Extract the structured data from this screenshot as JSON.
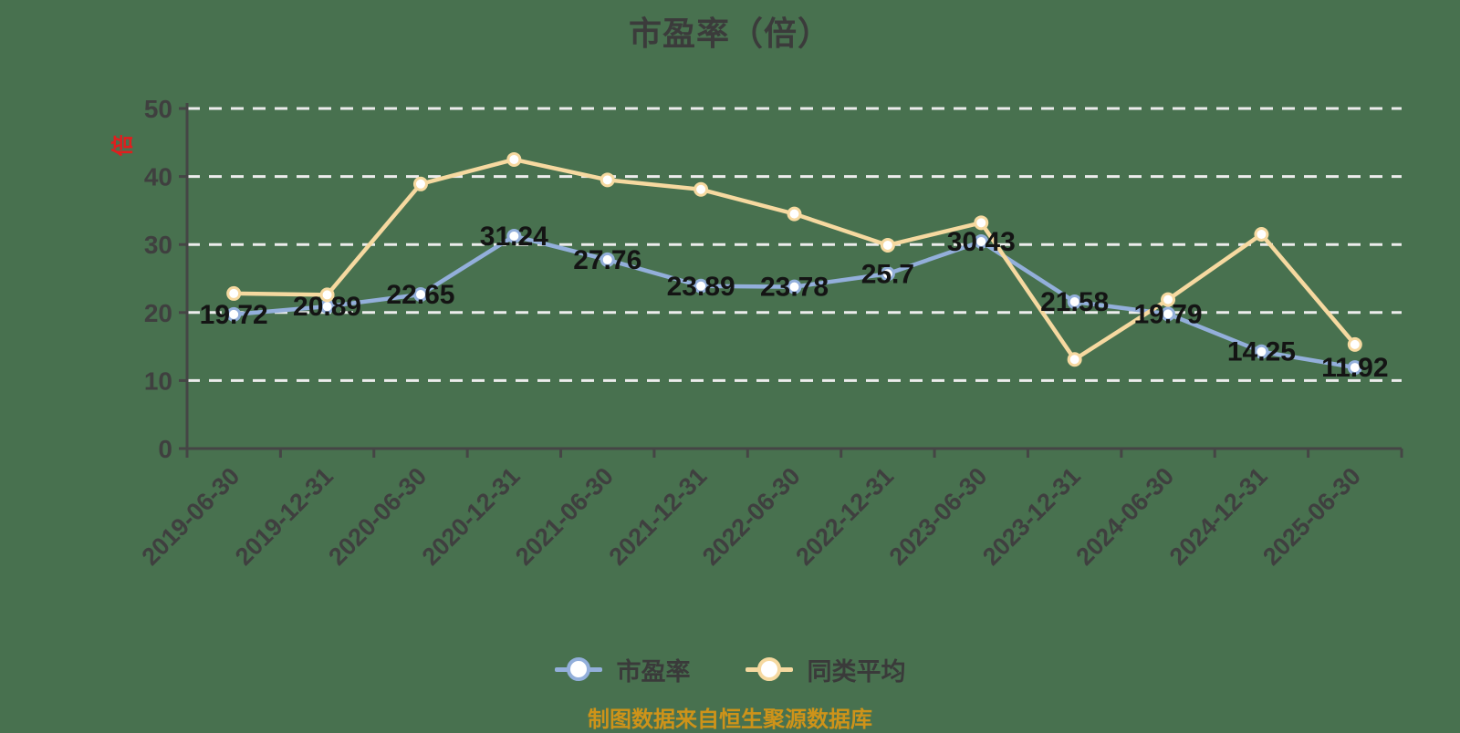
{
  "title": "市盈率（倍）",
  "y_axis_unit": "倍",
  "footer": "制图数据来自恒生聚源数据库",
  "colors": {
    "background": "#48714F",
    "pe_line": "#93AFDB",
    "avg_line": "#F6D9A0",
    "marker_fill": "#FFFFFF",
    "grid_line": "#ECECEC",
    "axis_line": "#454545",
    "tick_text": "#3F3F3F",
    "data_label_text": "#141414",
    "title_text": "#3B3B3B",
    "unit_text": "#E01E1E",
    "footer_text": "#CE9319"
  },
  "legend": {
    "items": [
      {
        "label": "市盈率",
        "color": "#93AFDB"
      },
      {
        "label": "同类平均",
        "color": "#F6D9A0"
      }
    ]
  },
  "chart_data": {
    "type": "line",
    "title": "市盈率（倍）",
    "xlabel": "",
    "ylabel": "倍",
    "ylim": [
      0,
      50
    ],
    "y_ticks": [
      0,
      10,
      20,
      30,
      40,
      50
    ],
    "grid": "horizontal dashed",
    "legend_position": "bottom",
    "categories": [
      "2019-06-30",
      "2019-12-31",
      "2020-06-30",
      "2020-12-31",
      "2021-06-30",
      "2021-12-31",
      "2022-06-30",
      "2022-12-31",
      "2023-06-30",
      "2023-12-31",
      "2024-06-30",
      "2024-12-31",
      "2025-06-30"
    ],
    "series": [
      {
        "name": "市盈率",
        "color": "#93AFDB",
        "labels_visible": true,
        "values": [
          19.72,
          20.89,
          22.65,
          31.24,
          27.76,
          23.89,
          23.78,
          25.7,
          30.43,
          21.58,
          19.79,
          14.25,
          11.92
        ],
        "value_labels": [
          "19.72",
          "20.89",
          "22.65",
          "31.24",
          "27.76",
          "23.89",
          "23.78",
          "25.7",
          "30.43",
          "21.58",
          "19.79",
          "14.25",
          "11.92"
        ]
      },
      {
        "name": "同类平均",
        "color": "#F6D9A0",
        "labels_visible": false,
        "values": [
          22.8,
          22.6,
          38.9,
          42.5,
          39.5,
          38.1,
          34.5,
          29.9,
          33.2,
          13.1,
          21.9,
          31.5,
          15.3
        ]
      }
    ]
  }
}
